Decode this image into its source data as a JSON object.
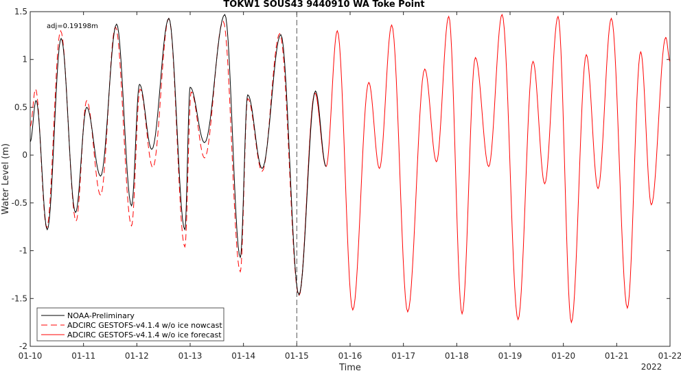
{
  "chart_data": {
    "type": "line",
    "title": "TOKW1 SOUS43 9440910 WA Toke Point",
    "xlabel": "Time",
    "ylabel": "Water Level (m)",
    "ylim": [
      -2,
      1.5
    ],
    "xlim": [
      "2022-01-10",
      "2022-01-22"
    ],
    "x_tick_labels": [
      "01-10",
      "01-11",
      "01-12",
      "01-13",
      "01-14",
      "01-15",
      "01-16",
      "01-17",
      "01-18",
      "01-19",
      "01-20",
      "01-21",
      "01-22"
    ],
    "year_label": "2022",
    "y_ticks": [
      -2,
      -1.5,
      -1,
      -0.5,
      0,
      0.5,
      1,
      1.5
    ],
    "y_tick_labels": [
      "-2",
      "-1.5",
      "-1",
      "-0.5",
      "0",
      "0.5",
      "1",
      "1.5"
    ],
    "annotation": "adj=0.19198m",
    "nowcast_forecast_boundary": "2022-01-15",
    "grid": false,
    "legend_position": "bottom-left",
    "legend": [
      {
        "label": "NOAA-Preliminary",
        "color": "#000000",
        "style": "solid"
      },
      {
        "label": "ADCIRC GESTOFS-v4.1.4 w/o ice nowcast",
        "color": "#ff0000",
        "style": "dashed"
      },
      {
        "label": "ADCIRC GESTOFS-v4.1.4 w/o ice forecast",
        "color": "#ff0000",
        "style": "solid"
      }
    ],
    "series": [
      {
        "name": "NOAA-Preliminary",
        "color": "#000000",
        "style": "solid",
        "x_day_of_month": [
          10.0,
          10.11,
          10.32,
          10.58,
          10.85,
          11.06,
          11.32,
          11.62,
          11.9,
          12.05,
          12.28,
          12.6,
          12.9,
          13.0,
          13.27,
          13.65,
          13.94,
          14.08,
          14.35,
          14.7,
          15.04,
          15.35,
          15.55
        ],
        "y": [
          0.14,
          0.57,
          -0.78,
          1.22,
          -0.6,
          0.5,
          -0.22,
          1.37,
          -0.53,
          0.74,
          0.06,
          1.43,
          -0.78,
          0.71,
          0.13,
          1.47,
          -1.07,
          0.63,
          -0.14,
          1.26,
          -1.46,
          0.67,
          -0.12
        ]
      },
      {
        "name": "ADCIRC GESTOFS-v4.1.4 w/o ice nowcast",
        "color": "#ff0000",
        "style": "dashed",
        "x_day_of_month": [
          10.0,
          10.1,
          10.31,
          10.57,
          10.86,
          11.06,
          11.32,
          11.6,
          11.9,
          12.06,
          12.3,
          12.6,
          12.9,
          13.02,
          13.27,
          13.62,
          13.94,
          14.08,
          14.35,
          14.68,
          15.04,
          15.34,
          15.55
        ],
        "y": [
          0.3,
          0.69,
          -0.76,
          1.3,
          -0.69,
          0.57,
          -0.42,
          1.34,
          -0.74,
          0.69,
          -0.13,
          1.43,
          -0.96,
          0.66,
          -0.03,
          1.4,
          -1.22,
          0.59,
          -0.17,
          1.27,
          -1.47,
          0.65,
          -0.12
        ]
      },
      {
        "name": "ADCIRC GESTOFS-v4.1.4 w/o ice forecast",
        "color": "#ff0000",
        "style": "solid",
        "x_day_of_month": [
          15.04,
          15.34,
          15.55,
          15.76,
          16.05,
          16.35,
          16.55,
          16.78,
          17.08,
          17.4,
          17.62,
          17.85,
          18.1,
          18.35,
          18.6,
          18.85,
          19.15,
          19.43,
          19.65,
          19.9,
          20.15,
          20.43,
          20.65,
          20.9,
          21.2,
          21.45,
          21.65,
          21.92,
          22.0
        ],
        "y": [
          -1.47,
          0.65,
          -0.12,
          1.3,
          -1.62,
          0.76,
          -0.14,
          1.36,
          -1.64,
          0.9,
          -0.07,
          1.45,
          -1.66,
          1.02,
          -0.12,
          1.47,
          -1.72,
          0.98,
          -0.3,
          1.45,
          -1.75,
          1.05,
          -0.35,
          1.43,
          -1.6,
          1.08,
          -0.52,
          1.23,
          0.98
        ]
      }
    ]
  }
}
